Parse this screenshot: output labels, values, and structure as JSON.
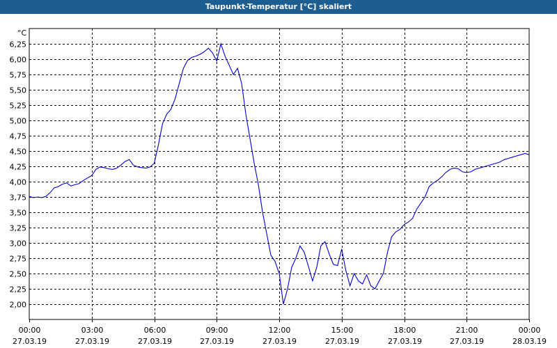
{
  "window": {
    "title": "Taupunkt-Temperatur [°C] skaliert"
  },
  "colors": {
    "titlebar": "#1e5d90",
    "line": "#0000cc",
    "grid": "#000000",
    "plot_background": "#ffffff"
  },
  "chart_data": {
    "type": "line",
    "title": "Taupunkt-Temperatur [°C] skaliert",
    "unit_label": "°C",
    "ylim": [
      1.75,
      6.5
    ],
    "xlim": [
      "27.03.19 00:00",
      "28.03.19 00:00"
    ],
    "grid": true,
    "y_ticks": [
      "2,00",
      "2,25",
      "2,50",
      "2,75",
      "3,00",
      "3,25",
      "3,50",
      "3,75",
      "4,00",
      "4,25",
      "4,50",
      "4,75",
      "5,00",
      "5,25",
      "5,50",
      "5,75",
      "6,00",
      "6,25"
    ],
    "y_tick_values": [
      2.0,
      2.25,
      2.5,
      2.75,
      3.0,
      3.25,
      3.5,
      3.75,
      4.0,
      4.25,
      4.5,
      4.75,
      5.0,
      5.25,
      5.5,
      5.75,
      6.0,
      6.25
    ],
    "x_ticks": [
      {
        "time": "00:00",
        "date": "27.03.19"
      },
      {
        "time": "03:00",
        "date": "27.03.19"
      },
      {
        "time": "06:00",
        "date": "27.03.19"
      },
      {
        "time": "09:00",
        "date": "27.03.19"
      },
      {
        "time": "12:00",
        "date": "27.03.19"
      },
      {
        "time": "15:00",
        "date": "27.03.19"
      },
      {
        "time": "18:00",
        "date": "27.03.19"
      },
      {
        "time": "21:00",
        "date": "27.03.19"
      },
      {
        "time": "00:00",
        "date": "28.03.19"
      }
    ],
    "x_tick_hours": [
      0,
      3,
      6,
      9,
      12,
      15,
      18,
      21,
      24
    ],
    "series": [
      {
        "x": [
          0,
          0.2,
          0.4,
          0.6,
          0.8,
          1.0,
          1.2,
          1.4,
          1.6,
          1.8,
          2.0,
          2.2,
          2.4,
          2.6,
          2.8,
          3.0,
          3.2,
          3.4,
          3.6,
          3.8,
          4.0,
          4.2,
          4.4,
          4.6,
          4.8,
          5.0,
          5.2,
          5.4,
          5.6,
          5.8,
          6.0,
          6.2,
          6.4,
          6.6,
          6.8,
          7.0,
          7.2,
          7.4,
          7.6,
          7.8,
          8.0,
          8.2,
          8.4,
          8.6,
          8.8,
          9.0,
          9.2,
          9.4,
          9.6,
          9.8,
          10.0,
          10.2,
          10.4,
          10.6,
          10.8,
          11.0,
          11.2,
          11.4,
          11.6,
          11.8,
          12.0,
          12.2,
          12.4,
          12.6,
          12.8,
          13.0,
          13.2,
          13.4,
          13.6,
          13.8,
          14.0,
          14.2,
          14.4,
          14.6,
          14.8,
          15.0,
          15.2,
          15.4,
          15.6,
          15.8,
          16.0,
          16.2,
          16.4,
          16.6,
          16.8,
          17.0,
          17.2,
          17.4,
          17.6,
          17.8,
          18.0,
          18.2,
          18.4,
          18.6,
          18.8,
          19.0,
          19.2,
          19.4,
          19.6,
          19.8,
          20.0,
          20.2,
          20.4,
          20.6,
          20.8,
          21.0,
          21.2,
          21.4,
          21.6,
          21.8,
          22.0,
          22.2,
          22.4,
          22.6,
          22.8,
          23.0,
          23.2,
          23.4,
          23.6,
          23.8,
          24.0
        ],
        "values": [
          3.76,
          3.74,
          3.75,
          3.74,
          3.76,
          3.82,
          3.9,
          3.92,
          3.96,
          3.98,
          3.93,
          3.95,
          3.97,
          4.02,
          4.06,
          4.1,
          4.2,
          4.24,
          4.23,
          4.21,
          4.2,
          4.22,
          4.27,
          4.33,
          4.36,
          4.27,
          4.24,
          4.23,
          4.22,
          4.24,
          4.3,
          4.6,
          4.95,
          5.1,
          5.18,
          5.35,
          5.6,
          5.85,
          5.98,
          6.03,
          6.05,
          6.08,
          6.12,
          6.18,
          6.1,
          5.97,
          6.25,
          6.05,
          5.9,
          5.75,
          5.85,
          5.6,
          5.1,
          4.7,
          4.3,
          3.95,
          3.5,
          3.15,
          2.8,
          2.7,
          2.5,
          2.0,
          2.25,
          2.6,
          2.75,
          2.95,
          2.85,
          2.62,
          2.38,
          2.6,
          2.95,
          3.02,
          2.82,
          2.65,
          2.63,
          2.9,
          2.55,
          2.3,
          2.5,
          2.38,
          2.33,
          2.48,
          2.3,
          2.25,
          2.38,
          2.5,
          2.85,
          3.1,
          3.18,
          3.22,
          3.3,
          3.34,
          3.4,
          3.55,
          3.65,
          3.75,
          3.92,
          3.98,
          4.02,
          4.08,
          4.15,
          4.2,
          4.22,
          4.21,
          4.16,
          4.15,
          4.16,
          4.2,
          4.22,
          4.24,
          4.26,
          4.28,
          4.3,
          4.32,
          4.36,
          4.38,
          4.4,
          4.42,
          4.44,
          4.46,
          4.44
        ]
      }
    ]
  }
}
